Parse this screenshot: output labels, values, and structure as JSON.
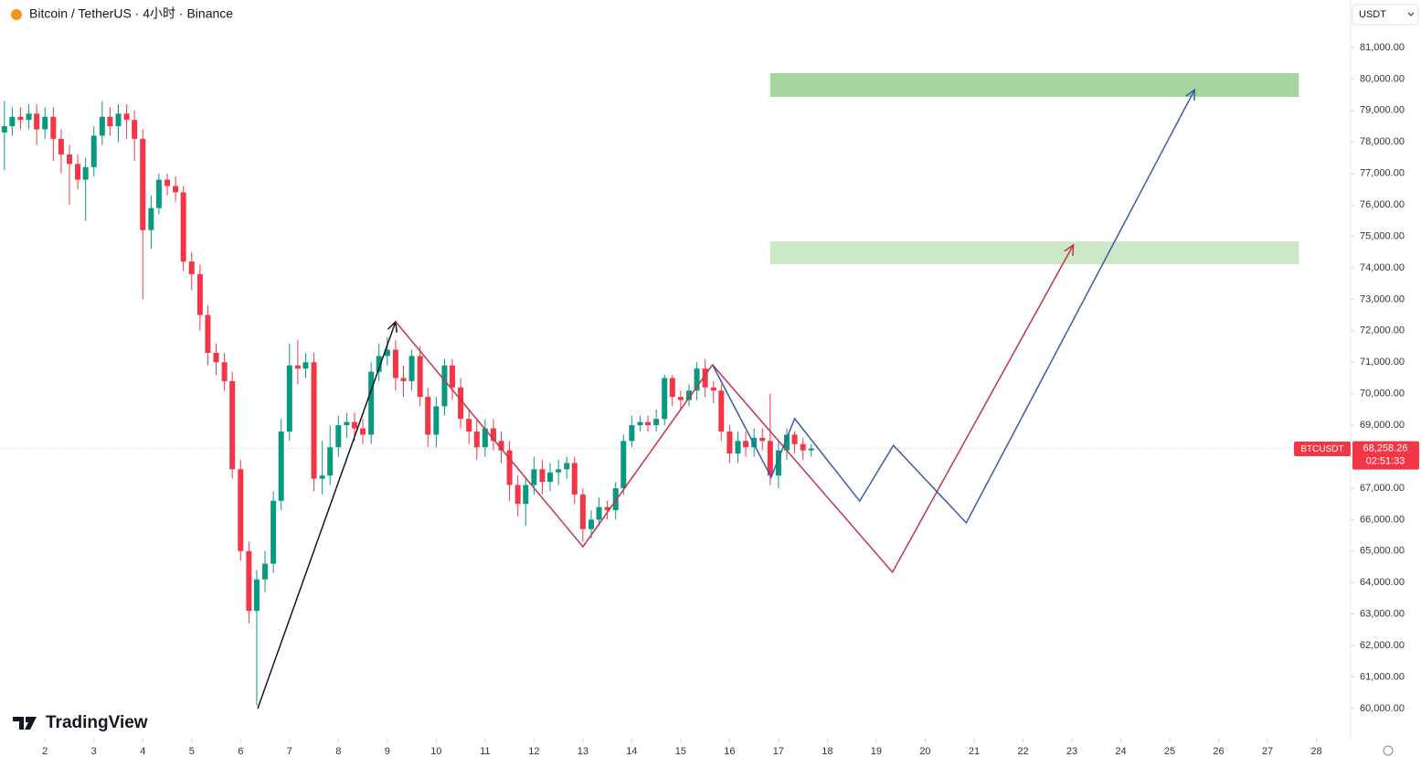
{
  "chart_data": {
    "type": "candlestick",
    "title": "Bitcoin / TetherUS · 4小时 · Binance",
    "currency": "USDT",
    "symbol_tag": "BTCUSDT",
    "countdown": "02:51:33",
    "logo": "TradingView",
    "up_color": "#089981",
    "down_color": "#f23645",
    "xlim": [
      1.08,
      28.7
    ],
    "ylim": [
      59040,
      82510
    ],
    "xticks": [
      2,
      3,
      4,
      5,
      6,
      7,
      8,
      9,
      10,
      11,
      12,
      13,
      14,
      15,
      16,
      17,
      18,
      19,
      20,
      21,
      22,
      23,
      24,
      25,
      26,
      27,
      28
    ],
    "yticks": [
      {
        "value": 60000,
        "label": "60,000.00"
      },
      {
        "value": 61000,
        "label": "61,000.00"
      },
      {
        "value": 62000,
        "label": "62,000.00"
      },
      {
        "value": 63000,
        "label": "63,000.00"
      },
      {
        "value": 64000,
        "label": "64,000.00"
      },
      {
        "value": 65000,
        "label": "65,000.00"
      },
      {
        "value": 66000,
        "label": "66,000.00"
      },
      {
        "value": 67000,
        "label": "67,000.00"
      },
      {
        "value": 68000,
        "label": "68,000.00"
      },
      {
        "value": 69000,
        "label": "69,000.00"
      },
      {
        "value": 70000,
        "label": "70,000.00"
      },
      {
        "value": 71000,
        "label": "71,000.00"
      },
      {
        "value": 72000,
        "label": "72,000.00"
      },
      {
        "value": 73000,
        "label": "73,000.00"
      },
      {
        "value": 74000,
        "label": "74,000.00"
      },
      {
        "value": 75000,
        "label": "75,000.00"
      },
      {
        "value": 76000,
        "label": "76,000.00"
      },
      {
        "value": 77000,
        "label": "77,000.00"
      },
      {
        "value": 78000,
        "label": "78,000.00"
      },
      {
        "value": 79000,
        "label": "79,000.00"
      },
      {
        "value": 80000,
        "label": "80,000.00"
      },
      {
        "value": 81000,
        "label": "81,000.00"
      }
    ],
    "last_price": {
      "value": 68258.26,
      "label": "68,258.26",
      "color": "#f23645"
    },
    "x": [
      1.17,
      1.33,
      1.5,
      1.67,
      1.83,
      2,
      2.17,
      2.33,
      2.5,
      2.67,
      2.83,
      3,
      3.17,
      3.33,
      3.5,
      3.67,
      3.83,
      4,
      4.17,
      4.33,
      4.5,
      4.67,
      4.83,
      5,
      5.17,
      5.33,
      5.5,
      5.67,
      5.83,
      6,
      6.17,
      6.33,
      6.5,
      6.67,
      6.83,
      7,
      7.17,
      7.33,
      7.5,
      7.67,
      7.83,
      8,
      8.17,
      8.33,
      8.5,
      8.67,
      8.83,
      9,
      9.17,
      9.33,
      9.5,
      9.67,
      9.83,
      10,
      10.17,
      10.33,
      10.5,
      10.67,
      10.83,
      11,
      11.17,
      11.33,
      11.5,
      11.67,
      11.83,
      12,
      12.17,
      12.33,
      12.5,
      12.67,
      12.83,
      13,
      13.17,
      13.33,
      13.5,
      13.67,
      13.83,
      14,
      14.17,
      14.33,
      14.5,
      14.67,
      14.83,
      15,
      15.17,
      15.33,
      15.5,
      15.67,
      15.83,
      16,
      16.17,
      16.33,
      16.5,
      16.67,
      16.83,
      17,
      17.17,
      17.33,
      17.5,
      17.67
    ],
    "open": [
      78300,
      78500,
      78800,
      78700,
      78900,
      78400,
      78800,
      78100,
      77600,
      77300,
      76800,
      77200,
      78200,
      78800,
      78500,
      78900,
      78700,
      78100,
      75200,
      75900,
      76800,
      76600,
      76400,
      74200,
      73800,
      72500,
      71300,
      71000,
      70400,
      67600,
      65000,
      63100,
      64100,
      64600,
      66600,
      68800,
      70900,
      70800,
      71000,
      67300,
      67400,
      68300,
      69000,
      69100,
      68900,
      68700,
      70700,
      71200,
      71400,
      70500,
      70400,
      71200,
      69900,
      68700,
      69600,
      70900,
      70200,
      69200,
      68800,
      68300,
      68900,
      68500,
      68200,
      67100,
      66500,
      67100,
      67600,
      67200,
      67500,
      67600,
      67800,
      66800,
      65700,
      66000,
      66400,
      66300,
      67000,
      68500,
      69000,
      69100,
      69000,
      69200,
      70500,
      69900,
      69800,
      70100,
      70800,
      70200,
      70100,
      68800,
      68100,
      68500,
      68300,
      68600,
      68500,
      67400,
      68200,
      68700,
      68400,
      68200
    ],
    "high": [
      79300,
      79100,
      79100,
      79200,
      79200,
      79100,
      79100,
      78400,
      77900,
      77600,
      77500,
      78500,
      79300,
      79100,
      79200,
      79200,
      79000,
      78400,
      76300,
      77000,
      77000,
      76900,
      76600,
      74500,
      74100,
      72800,
      71600,
      71300,
      70700,
      67900,
      65300,
      64400,
      65000,
      66900,
      69200,
      71600,
      71700,
      71300,
      71300,
      68500,
      69000,
      69300,
      69400,
      69400,
      69200,
      71000,
      71600,
      71800,
      71700,
      70900,
      71400,
      71500,
      70200,
      69900,
      71100,
      71100,
      70500,
      69500,
      69200,
      69200,
      69200,
      68800,
      68500,
      67400,
      67300,
      68000,
      67900,
      67800,
      67900,
      68000,
      68000,
      67000,
      66300,
      66700,
      66600,
      67200,
      68700,
      69300,
      69300,
      69300,
      69500,
      70600,
      70600,
      70100,
      70300,
      71000,
      71100,
      70400,
      70300,
      69000,
      68800,
      68800,
      68900,
      68900,
      70000,
      68500,
      68900,
      68800,
      68600,
      68400
    ],
    "low": [
      77100,
      78200,
      78400,
      78400,
      77900,
      78100,
      77400,
      77000,
      76000,
      76500,
      75500,
      76900,
      77900,
      78200,
      78000,
      78100,
      77400,
      73000,
      74600,
      75700,
      76300,
      76100,
      73900,
      73300,
      72000,
      70900,
      70600,
      70100,
      67300,
      64700,
      62700,
      60100,
      63700,
      64300,
      66300,
      68500,
      70300,
      70500,
      66900,
      66800,
      67100,
      68000,
      68600,
      68500,
      68400,
      68400,
      70400,
      70900,
      70100,
      69900,
      70100,
      69600,
      68300,
      68300,
      69300,
      69800,
      68900,
      68400,
      67900,
      68000,
      68200,
      67800,
      66600,
      66100,
      65800,
      66800,
      66800,
      66900,
      67100,
      67300,
      66500,
      65300,
      65400,
      65800,
      66000,
      66000,
      66800,
      68300,
      68800,
      68800,
      68800,
      69000,
      69600,
      69500,
      69600,
      69800,
      69900,
      69700,
      68500,
      67800,
      67800,
      68000,
      68000,
      68200,
      67100,
      67000,
      67900,
      68100,
      67900,
      68000
    ],
    "close": [
      78500,
      78800,
      78700,
      78900,
      78400,
      78800,
      78100,
      77600,
      77300,
      76800,
      77200,
      78200,
      78800,
      78500,
      78900,
      78700,
      78100,
      75200,
      75900,
      76800,
      76600,
      76400,
      74200,
      73800,
      72500,
      71300,
      71000,
      70400,
      67600,
      65000,
      63100,
      64100,
      64600,
      66600,
      68800,
      70900,
      70800,
      71000,
      67300,
      67400,
      68300,
      69000,
      69100,
      68900,
      68700,
      70700,
      71200,
      71400,
      70500,
      70400,
      71200,
      69900,
      68700,
      69600,
      70900,
      70200,
      69200,
      68800,
      68300,
      68900,
      68500,
      68200,
      67100,
      66500,
      67100,
      67600,
      67200,
      67500,
      67600,
      67800,
      66800,
      65700,
      66000,
      66400,
      66300,
      67000,
      68500,
      69000,
      69100,
      69000,
      69200,
      70500,
      69900,
      69800,
      70100,
      70800,
      70200,
      70100,
      68800,
      68100,
      68500,
      68300,
      68600,
      68500,
      67400,
      68200,
      68700,
      68400,
      68200,
      68258.26
    ],
    "zones": [
      {
        "x": [
          16.83,
          27.64
        ],
        "y": [
          79430,
          80190
        ],
        "color": "#a5d6a0"
      },
      {
        "x": [
          16.83,
          27.64
        ],
        "y": [
          74115,
          74840
        ],
        "color": "#cde8c6"
      }
    ],
    "drawings": [
      {
        "color": "#131722",
        "arrow": true,
        "x": [
          6.35,
          9.17
        ],
        "y": [
          60000,
          72290
        ]
      },
      {
        "color": "#c2344d",
        "arrow": true,
        "x": [
          9.17,
          13.0,
          15.65,
          19.33,
          23.03
        ],
        "y": [
          72290,
          65140,
          70920,
          64330,
          74730
        ]
      },
      {
        "color": "#3d5aa8",
        "arrow": true,
        "x": [
          15.65,
          16.85,
          17.33,
          18.66,
          19.35,
          20.84,
          25.51
        ],
        "y": [
          70920,
          67350,
          69210,
          66590,
          68360,
          65900,
          79660
        ]
      }
    ]
  }
}
